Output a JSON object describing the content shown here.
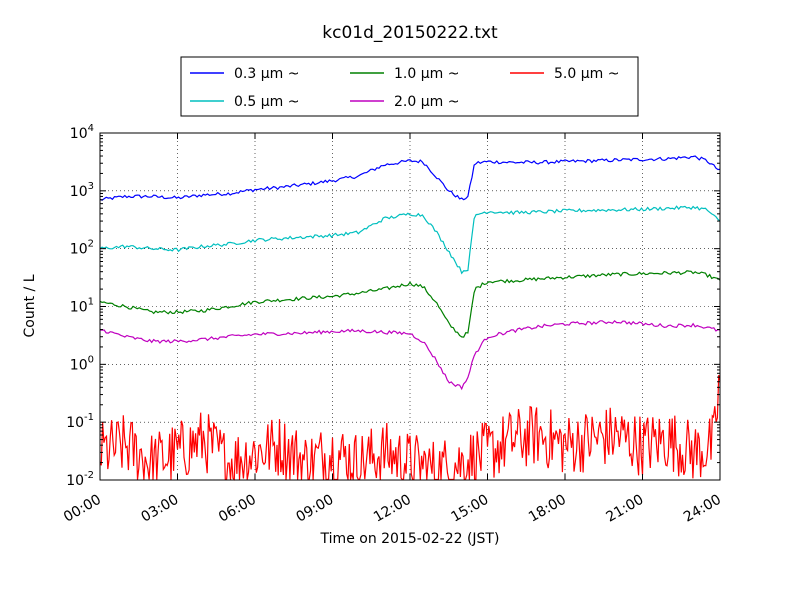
{
  "chart_data": {
    "type": "line",
    "title": "kc01d_20150222.txt",
    "xlabel": "Time on 2015-02-22 (JST)",
    "ylabel": "Count / L",
    "xlim": [
      "00:00",
      "24:00"
    ],
    "ylim": [
      0.01,
      10000
    ],
    "yscale": "log",
    "grid": true,
    "legend_position": "top-center",
    "x_ticks": [
      "00:00",
      "03:00",
      "06:00",
      "09:00",
      "12:00",
      "15:00",
      "18:00",
      "21:00",
      "24:00"
    ],
    "y_ticks": [
      {
        "base": "10",
        "exp": "-2",
        "value": 0.01
      },
      {
        "base": "10",
        "exp": "-1",
        "value": 0.1
      },
      {
        "base": "10",
        "exp": "0",
        "value": 1
      },
      {
        "base": "10",
        "exp": "1",
        "value": 10
      },
      {
        "base": "10",
        "exp": "2",
        "value": 100
      },
      {
        "base": "10",
        "exp": "3",
        "value": 1000
      },
      {
        "base": "10",
        "exp": "4",
        "value": 10000
      }
    ],
    "series": [
      {
        "name": "0.3 μm ~",
        "color": "#0000ff",
        "x": [
          "00:00",
          "01:00",
          "02:00",
          "03:00",
          "04:00",
          "05:00",
          "06:00",
          "07:00",
          "08:00",
          "09:00",
          "10:00",
          "11:00",
          "12:00",
          "12:30",
          "13:00",
          "13:30",
          "14:00",
          "14:15",
          "14:30",
          "15:00",
          "16:00",
          "17:00",
          "18:00",
          "19:00",
          "20:00",
          "21:00",
          "22:00",
          "23:00",
          "23:30",
          "24:00"
        ],
        "values": [
          700,
          800,
          800,
          750,
          850,
          900,
          1050,
          1150,
          1300,
          1500,
          1800,
          2800,
          3300,
          3200,
          1800,
          1000,
          700,
          800,
          3000,
          3200,
          3100,
          3100,
          3200,
          3300,
          3400,
          3500,
          3600,
          3900,
          3300,
          2200
        ]
      },
      {
        "name": "1.0 μm ~",
        "color": "#008000",
        "x": [
          "00:00",
          "01:00",
          "02:00",
          "03:00",
          "04:00",
          "05:00",
          "06:00",
          "07:00",
          "08:00",
          "09:00",
          "10:00",
          "11:00",
          "12:00",
          "12:30",
          "13:00",
          "13:30",
          "14:00",
          "14:15",
          "14:30",
          "15:00",
          "16:00",
          "17:00",
          "18:00",
          "19:00",
          "20:00",
          "21:00",
          "22:00",
          "23:00",
          "23:30",
          "24:00"
        ],
        "values": [
          12,
          10,
          8,
          8,
          8.5,
          10,
          12,
          13,
          14,
          15,
          17,
          20,
          25,
          22,
          12,
          5,
          3,
          3.5,
          20,
          27,
          28,
          30,
          32,
          34,
          36,
          37,
          38,
          39,
          35,
          28
        ]
      },
      {
        "name": "5.0 μm ~",
        "color": "#ff0000",
        "x": [
          "00:00",
          "01:00",
          "02:00",
          "03:00",
          "04:00",
          "05:00",
          "06:00",
          "07:00",
          "08:00",
          "09:00",
          "10:00",
          "11:00",
          "12:00",
          "13:00",
          "14:00",
          "15:00",
          "16:00",
          "17:00",
          "18:00",
          "19:00",
          "20:00",
          "21:00",
          "22:00",
          "23:00",
          "23:45",
          "24:00"
        ],
        "values": [
          0.03,
          0.04,
          0.02,
          0.03,
          0.05,
          0.02,
          0.03,
          0.04,
          0.02,
          0.03,
          0.02,
          0.03,
          0.02,
          0.015,
          0.02,
          0.03,
          0.05,
          0.06,
          0.04,
          0.05,
          0.06,
          0.04,
          0.05,
          0.03,
          0.04,
          0.6
        ]
      },
      {
        "name": "0.5 μm ~",
        "color": "#00bfbf",
        "x": [
          "00:00",
          "01:00",
          "02:00",
          "03:00",
          "04:00",
          "05:00",
          "06:00",
          "07:00",
          "08:00",
          "09:00",
          "10:00",
          "11:00",
          "12:00",
          "12:30",
          "13:00",
          "13:30",
          "14:00",
          "14:15",
          "14:30",
          "15:00",
          "16:00",
          "17:00",
          "18:00",
          "19:00",
          "20:00",
          "21:00",
          "22:00",
          "23:00",
          "23:30",
          "24:00"
        ],
        "values": [
          100,
          110,
          100,
          95,
          110,
          120,
          140,
          150,
          160,
          170,
          190,
          330,
          400,
          380,
          200,
          90,
          40,
          45,
          380,
          440,
          420,
          430,
          450,
          460,
          470,
          480,
          500,
          520,
          470,
          290
        ]
      },
      {
        "name": "2.0 μm ~",
        "color": "#bf00bf",
        "x": [
          "00:00",
          "01:00",
          "02:00",
          "03:00",
          "04:00",
          "05:00",
          "06:00",
          "07:00",
          "08:00",
          "09:00",
          "10:00",
          "11:00",
          "12:00",
          "12:30",
          "13:00",
          "13:30",
          "14:00",
          "14:15",
          "14:30",
          "15:00",
          "16:00",
          "17:00",
          "18:00",
          "19:00",
          "20:00",
          "21:00",
          "22:00",
          "23:00",
          "23:30",
          "24:00"
        ],
        "values": [
          4,
          3,
          2.5,
          2.5,
          2.7,
          3,
          3.3,
          3.4,
          3.5,
          3.7,
          3.8,
          3.6,
          3.4,
          2.5,
          1.2,
          0.5,
          0.4,
          0.6,
          1.5,
          3,
          3.8,
          4.5,
          5,
          5.2,
          5.5,
          5,
          4.6,
          4.8,
          4.3,
          3.8
        ]
      }
    ]
  }
}
